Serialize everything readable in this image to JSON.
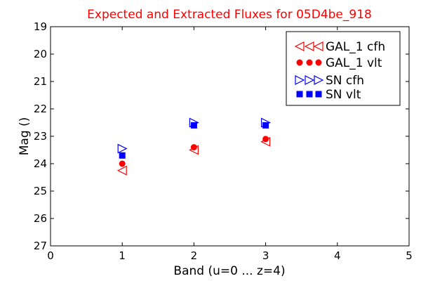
{
  "chart_data": {
    "type": "scatter",
    "title": "Expected and Extracted Fluxes for 05D4be_918",
    "xlabel": "Band (u=0 ... z=4)",
    "ylabel": "Mag ()",
    "xlim": [
      0,
      5
    ],
    "ylim": [
      19,
      27
    ],
    "y_inverted": true,
    "x_ticks": [
      0,
      1,
      2,
      3,
      4,
      5
    ],
    "y_ticks": [
      19,
      20,
      21,
      22,
      23,
      24,
      25,
      26,
      27
    ],
    "grid": false,
    "legend_position": "top-right",
    "series": [
      {
        "name": "GAL_1 cfh",
        "marker": "triangle-left-open",
        "color": "#ff0000",
        "points": [
          {
            "x": 1,
            "y": 24.25
          },
          {
            "x": 2,
            "y": 23.5
          },
          {
            "x": 3,
            "y": 23.2
          }
        ]
      },
      {
        "name": "GAL_1 vlt",
        "marker": "circle",
        "color": "#ff0000",
        "points": [
          {
            "x": 1,
            "y": 24.0
          },
          {
            "x": 2,
            "y": 23.4
          },
          {
            "x": 3,
            "y": 23.1
          }
        ]
      },
      {
        "name": "SN cfh",
        "marker": "triangle-right-open",
        "color": "#0000ff",
        "points": [
          {
            "x": 1,
            "y": 23.45
          },
          {
            "x": 2,
            "y": 22.5
          },
          {
            "x": 3,
            "y": 22.5
          }
        ]
      },
      {
        "name": "SN vlt",
        "marker": "square",
        "color": "#0000ff",
        "points": [
          {
            "x": 1,
            "y": 23.7
          },
          {
            "x": 2,
            "y": 22.6
          },
          {
            "x": 3,
            "y": 22.6
          }
        ]
      }
    ]
  }
}
